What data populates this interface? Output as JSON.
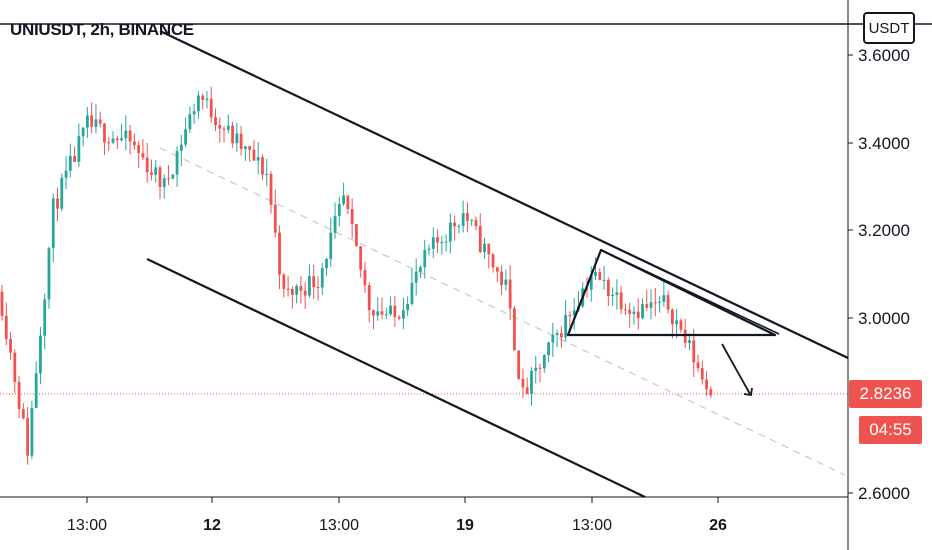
{
  "chart_data": {
    "type": "candlestick",
    "title": "UNIUSDT, 2h, BINANCE",
    "currency": "USDT",
    "last_price": "2.8236",
    "countdown": "04:55",
    "y_ticks": [
      "3.6000",
      "3.4000",
      "3.2000",
      "3.0000",
      "2.6000"
    ],
    "x_ticks": [
      "13:00",
      "12",
      "13:00",
      "19",
      "13:00",
      "26"
    ],
    "x_ticks_bold": [
      false,
      true,
      false,
      true,
      false,
      true
    ],
    "ylim": [
      2.59,
      3.64
    ],
    "grid": false,
    "colors": {
      "up": "#26a69a",
      "down": "#ef5350",
      "line": "#131722",
      "last_price_line": "#ef5350",
      "midline": "#c8c8c8"
    },
    "series_close_waypoints": [
      {
        "t": 0.0,
        "v": 3.03
      },
      {
        "t": 6.0,
        "v": 2.7
      },
      {
        "t": 12.0,
        "v": 3.25
      },
      {
        "t": 20.0,
        "v": 3.44
      },
      {
        "t": 30.0,
        "v": 3.4
      },
      {
        "t": 38.0,
        "v": 3.3
      },
      {
        "t": 46.0,
        "v": 3.51
      },
      {
        "t": 54.0,
        "v": 3.41
      },
      {
        "t": 62.0,
        "v": 3.33
      },
      {
        "t": 66.0,
        "v": 3.05
      },
      {
        "t": 74.0,
        "v": 3.09
      },
      {
        "t": 80.0,
        "v": 3.27
      },
      {
        "t": 86.0,
        "v": 3.03
      },
      {
        "t": 92.0,
        "v": 3.0
      },
      {
        "t": 100.0,
        "v": 3.15
      },
      {
        "t": 108.0,
        "v": 3.24
      },
      {
        "t": 118.0,
        "v": 3.07
      },
      {
        "t": 122.0,
        "v": 2.82
      },
      {
        "t": 130.0,
        "v": 2.96
      },
      {
        "t": 138.0,
        "v": 3.1
      },
      {
        "t": 148.0,
        "v": 3.02
      },
      {
        "t": 156.0,
        "v": 3.03
      },
      {
        "t": 162.0,
        "v": 2.91
      },
      {
        "t": 166.0,
        "v": 2.82
      }
    ]
  }
}
